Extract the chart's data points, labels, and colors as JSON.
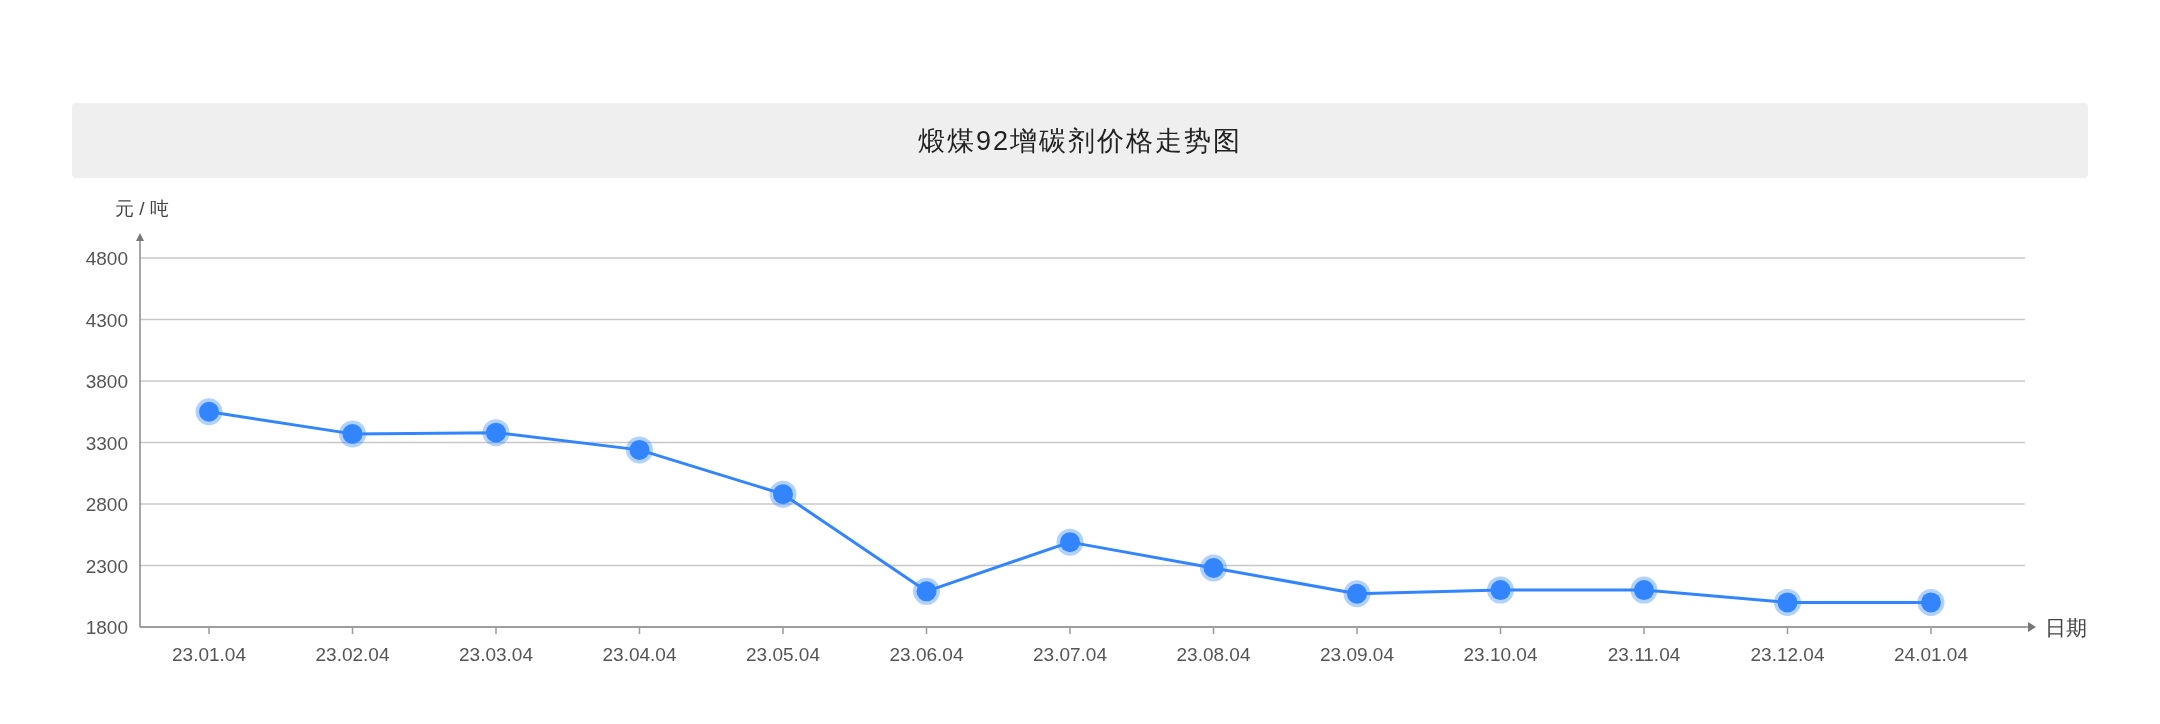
{
  "chart_data": {
    "type": "line",
    "title": "煅煤92增碳剂价格走势图",
    "ylabel": "元 / 吨",
    "xlabel": "日期",
    "categories": [
      "23.01.04",
      "23.02.04",
      "23.03.04",
      "23.04.04",
      "23.05.04",
      "23.06.04",
      "23.07.04",
      "23.08.04",
      "23.09.04",
      "23.10.04",
      "23.11.04",
      "23.12.04",
      "24.01.04"
    ],
    "values": [
      3550,
      3370,
      3380,
      3240,
      2880,
      2090,
      2490,
      2280,
      2070,
      2100,
      2100,
      2000,
      2000
    ],
    "color": "#3385ff",
    "marker": "circle",
    "line_style": "solid",
    "grid": "y",
    "ylim": [
      1800,
      4800
    ],
    "yticks": [
      1800,
      2300,
      2800,
      3300,
      3800,
      4300,
      4800
    ]
  }
}
